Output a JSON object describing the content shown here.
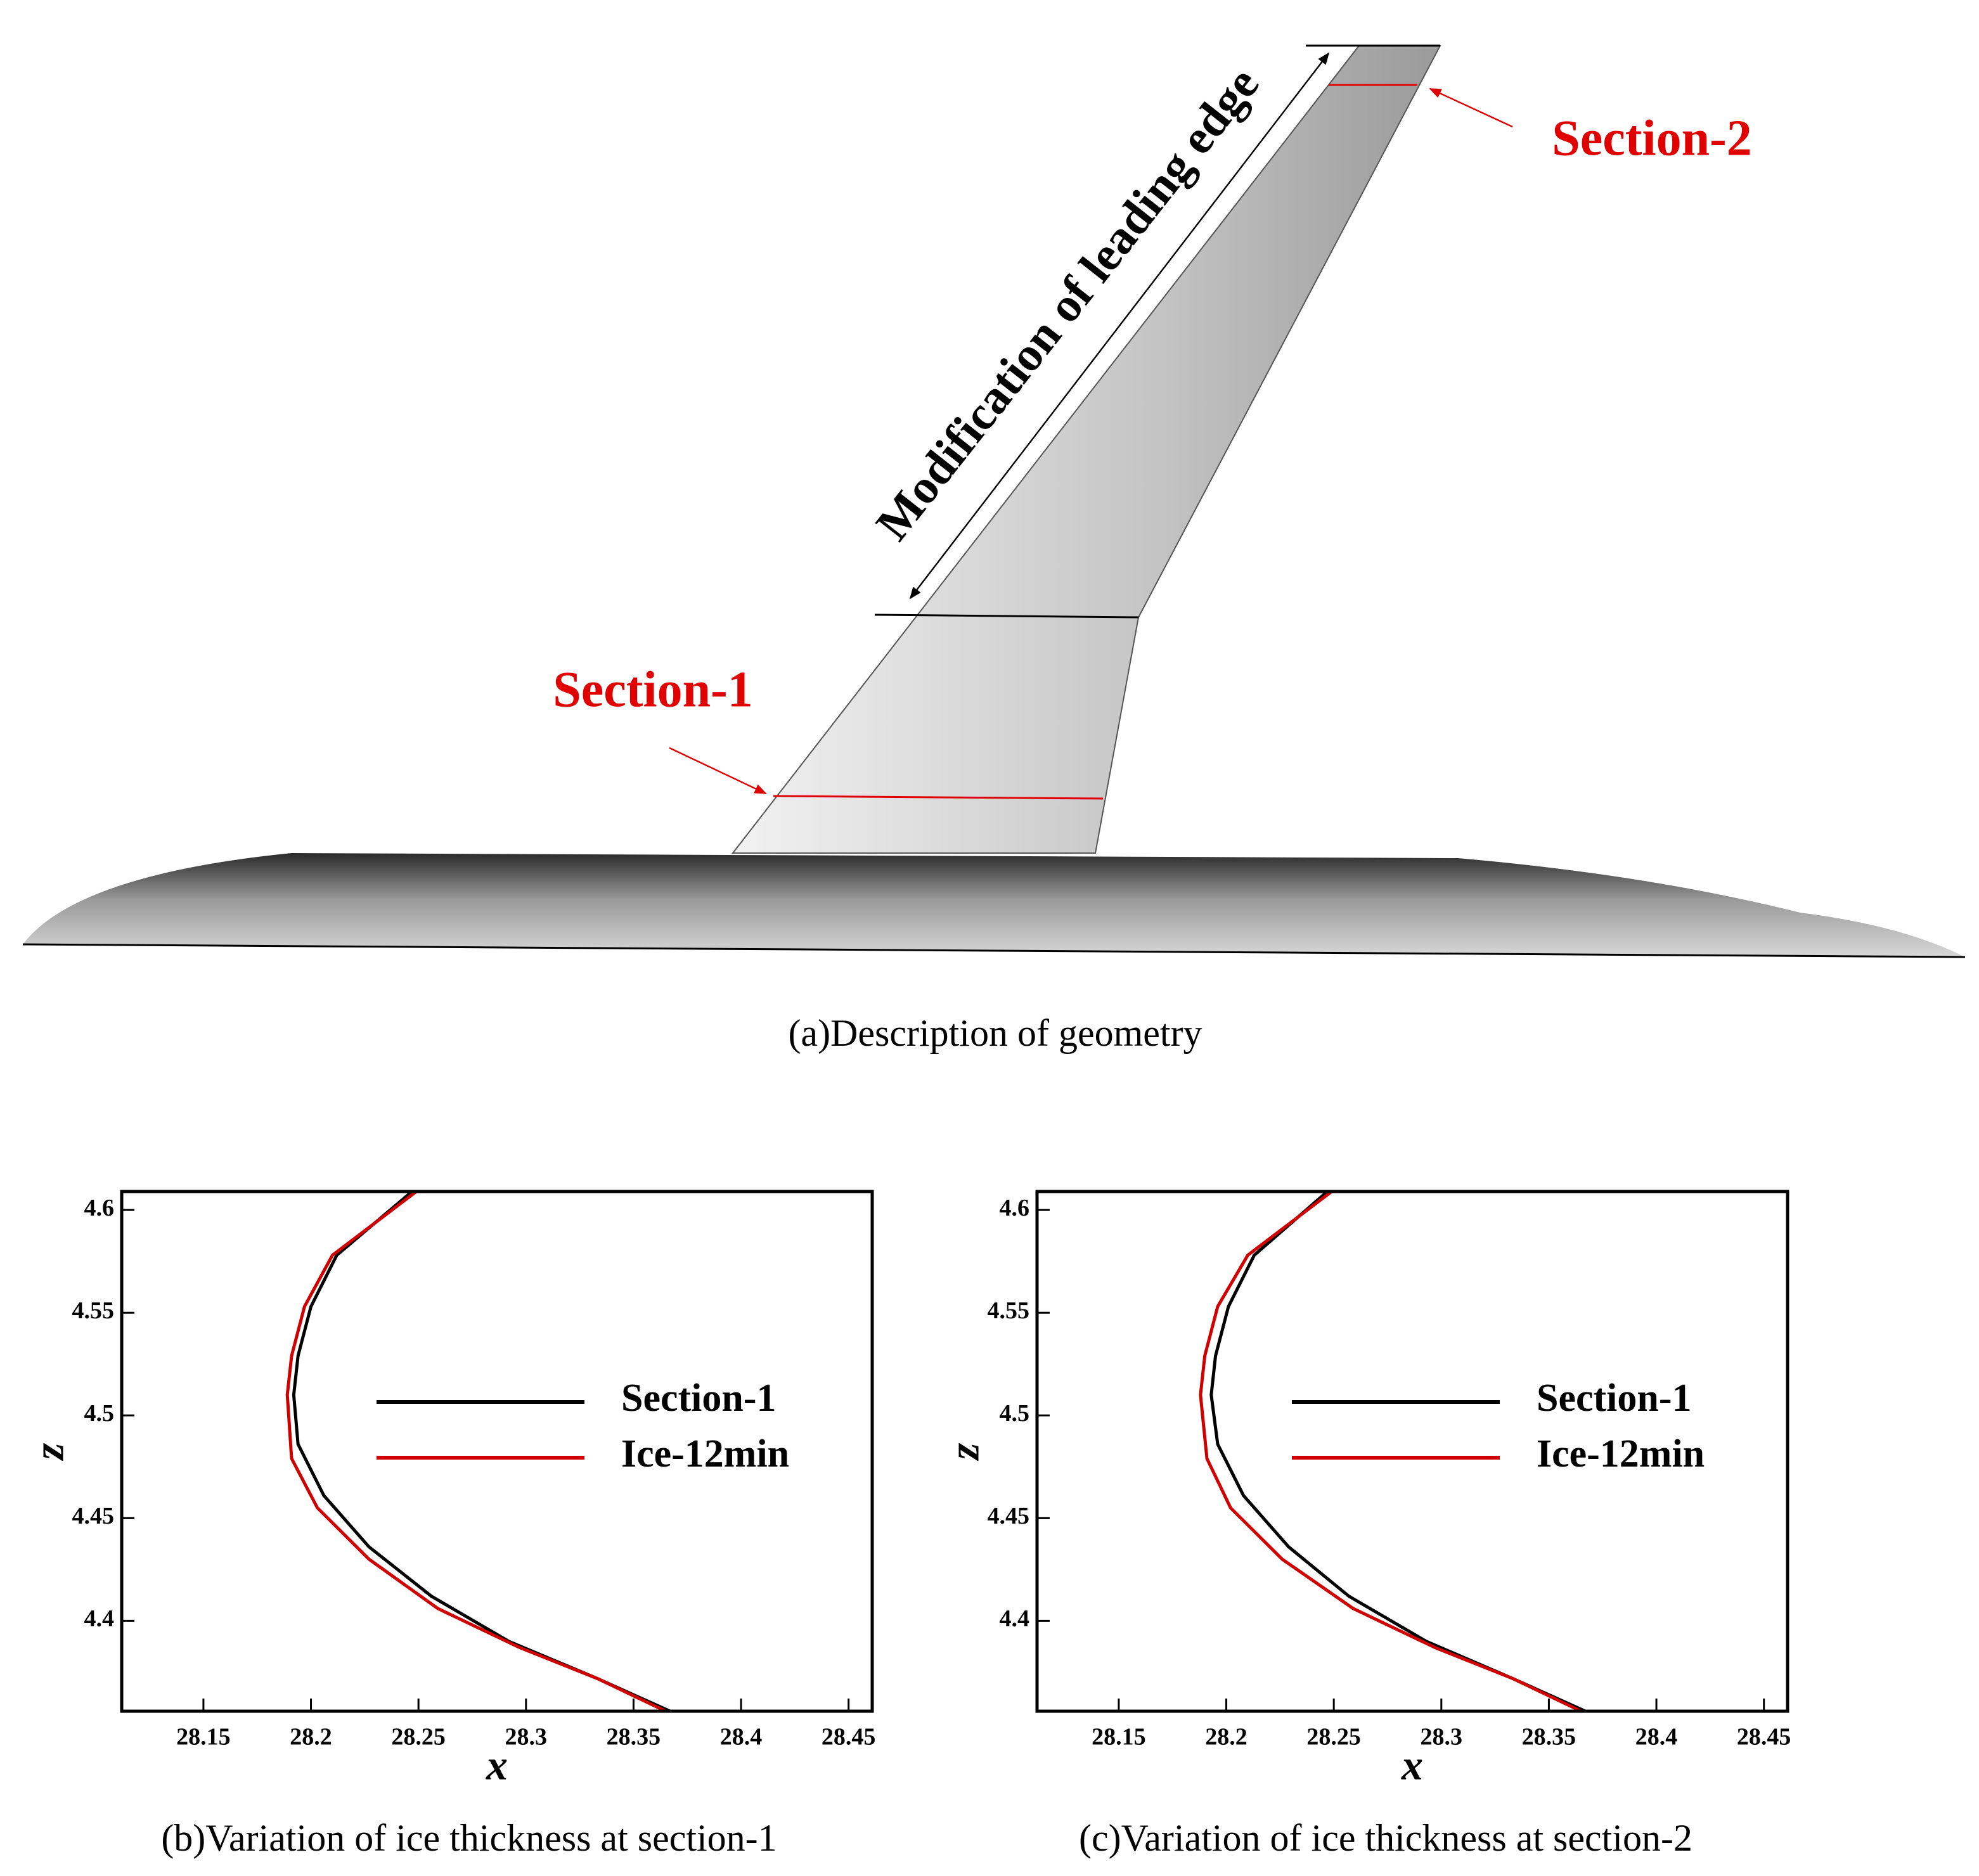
{
  "geometry": {
    "section_1_label": "Section-1",
    "section_2_label": "Section-2",
    "edge_label": "Modification of leading edge",
    "section_color": "#e00000",
    "caption": "(a)Description of geometry"
  },
  "chart_data": [
    {
      "type": "line",
      "caption": "(b)Variation of ice thickness at section-1",
      "xlabel": "x",
      "ylabel": "z",
      "xlim": [
        28.112,
        28.461
      ],
      "ylim": [
        4.356,
        4.609
      ],
      "xticks": [
        28.15,
        28.2,
        28.25,
        28.3,
        28.35,
        28.4,
        28.45
      ],
      "yticks": [
        4.4,
        4.45,
        4.5,
        4.55,
        4.6
      ],
      "series": [
        {
          "name": "Section-1",
          "color": "#000000",
          "x": [
            28.247,
            28.212,
            28.2,
            28.194,
            28.192,
            28.194,
            28.206,
            28.227,
            28.256,
            28.292,
            28.333,
            28.367
          ],
          "values": [
            4.609,
            4.578,
            4.553,
            4.529,
            4.51,
            4.486,
            4.461,
            4.436,
            4.412,
            4.39,
            4.372,
            4.356
          ]
        },
        {
          "name": "Ice-12min",
          "color": "#d00000",
          "x": [
            28.249,
            28.21,
            28.197,
            28.191,
            28.189,
            28.191,
            28.203,
            28.227,
            28.259,
            28.297,
            28.333,
            28.365
          ],
          "values": [
            4.609,
            4.578,
            4.553,
            4.529,
            4.51,
            4.479,
            4.455,
            4.43,
            4.406,
            4.387,
            4.372,
            4.356
          ]
        }
      ]
    },
    {
      "type": "line",
      "caption": "(c)Variation of ice thickness at section-2",
      "xlabel": "x",
      "ylabel": "z",
      "xlim": [
        28.112,
        28.461
      ],
      "ylim": [
        4.356,
        4.609
      ],
      "xticks": [
        28.15,
        28.2,
        28.25,
        28.3,
        28.35,
        28.4,
        28.45
      ],
      "yticks": [
        4.4,
        4.45,
        4.5,
        4.55,
        4.6
      ],
      "series": [
        {
          "name": "Section-1",
          "color": "#000000",
          "x": [
            28.247,
            28.213,
            28.201,
            28.195,
            28.193,
            28.196,
            28.208,
            28.229,
            28.257,
            28.293,
            28.333,
            28.367
          ],
          "values": [
            4.609,
            4.578,
            4.553,
            4.529,
            4.51,
            4.486,
            4.461,
            4.436,
            4.412,
            4.39,
            4.372,
            4.356
          ]
        },
        {
          "name": "Ice-12min",
          "color": "#d00000",
          "x": [
            28.249,
            28.21,
            28.196,
            28.19,
            28.188,
            28.191,
            28.202,
            28.226,
            28.259,
            28.297,
            28.333,
            28.365
          ],
          "values": [
            4.609,
            4.578,
            4.553,
            4.529,
            4.51,
            4.479,
            4.455,
            4.43,
            4.406,
            4.387,
            4.372,
            4.356
          ]
        }
      ]
    }
  ]
}
